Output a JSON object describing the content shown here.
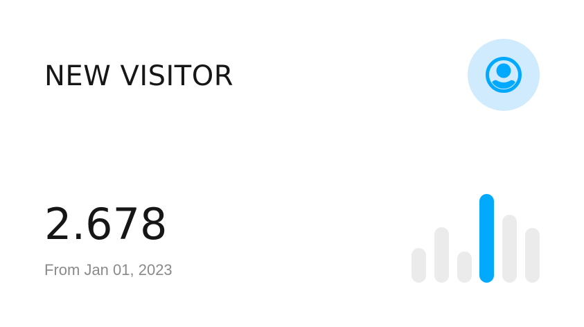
{
  "card": {
    "title": "NEW VISITOR",
    "value": "2.678",
    "subtitle": "From Jan 01, 2023",
    "icon": "user-circle-icon",
    "colors": {
      "accent": "#03a9fd",
      "accent_bg": "#cfebfd",
      "bar_inactive": "#ebebeb"
    }
  },
  "chart_data": {
    "type": "bar",
    "values": [
      50,
      80,
      45,
      128,
      98,
      79
    ],
    "highlight_index": 3,
    "axes": "none",
    "grid": false
  }
}
